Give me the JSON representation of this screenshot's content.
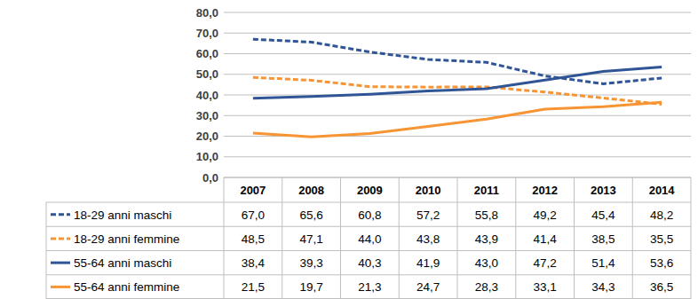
{
  "chart_data": {
    "type": "line",
    "categories": [
      "2007",
      "2008",
      "2009",
      "2010",
      "2011",
      "2012",
      "2013",
      "2014"
    ],
    "series": [
      {
        "name": "18-29 anni maschi",
        "color": "#2f5597",
        "line_style": "dashed",
        "values": [
          67.0,
          65.6,
          60.8,
          57.2,
          55.8,
          49.2,
          45.4,
          48.2
        ],
        "value_labels": [
          "67,0",
          "65,6",
          "60,8",
          "57,2",
          "55,8",
          "49,2",
          "45,4",
          "48,2"
        ]
      },
      {
        "name": "18-29 anni femmine",
        "color": "#f79433",
        "line_style": "dashed",
        "values": [
          48.5,
          47.1,
          44.0,
          43.8,
          43.9,
          41.4,
          38.5,
          35.5
        ],
        "value_labels": [
          "48,5",
          "47,1",
          "44,0",
          "43,8",
          "43,9",
          "41,4",
          "38,5",
          "35,5"
        ]
      },
      {
        "name": "55-64 anni maschi",
        "color": "#2f5597",
        "line_style": "solid",
        "values": [
          38.4,
          39.3,
          40.3,
          41.9,
          43.0,
          47.2,
          51.4,
          53.6
        ],
        "value_labels": [
          "38,4",
          "39,3",
          "40,3",
          "41,9",
          "43,0",
          "47,2",
          "51,4",
          "53,6"
        ]
      },
      {
        "name": "55-64 anni femmine",
        "color": "#f79433",
        "line_style": "solid",
        "values": [
          21.5,
          19.7,
          21.3,
          24.7,
          28.3,
          33.1,
          34.3,
          36.5
        ],
        "value_labels": [
          "21,5",
          "19,7",
          "21,3",
          "24,7",
          "28,3",
          "33,1",
          "34,3",
          "36,5"
        ]
      }
    ],
    "ylim": [
      0,
      80
    ],
    "yticks": [
      {
        "value": 0,
        "label": "0,0"
      },
      {
        "value": 10,
        "label": "10,0"
      },
      {
        "value": 20,
        "label": "20,0"
      },
      {
        "value": 30,
        "label": "30,0"
      },
      {
        "value": 40,
        "label": "40,0"
      },
      {
        "value": 50,
        "label": "50,0"
      },
      {
        "value": 60,
        "label": "60,0"
      },
      {
        "value": 70,
        "label": "70,0"
      },
      {
        "value": 80,
        "label": "80,0"
      }
    ],
    "grid": true
  }
}
